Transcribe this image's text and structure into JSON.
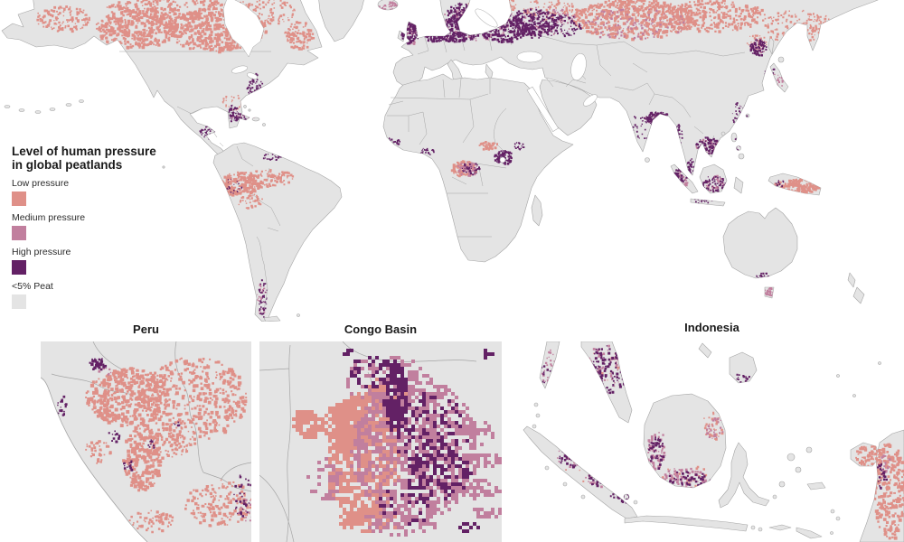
{
  "legend": {
    "title": "Level of human pressure\nin global peatlands",
    "items": [
      {
        "label": "Low pressure",
        "key": "low",
        "color": "#df9088"
      },
      {
        "label": "Medium pressure",
        "key": "medium",
        "color": "#c17f9e"
      },
      {
        "label": "High pressure",
        "key": "high",
        "color": "#632165"
      },
      {
        "label": "<5% Peat",
        "key": "peat",
        "color": "#e4e4e4"
      }
    ]
  },
  "insets": [
    {
      "title": "Peru"
    },
    {
      "title": "Congo Basin"
    },
    {
      "title": "Indonesia"
    }
  ],
  "map": {
    "colors": {
      "land": "#e4e4e4",
      "border": "#a5a5a5",
      "ocean": "#ffffff",
      "low": "#df9088",
      "medium": "#c17f9e",
      "high": "#632165"
    }
  }
}
